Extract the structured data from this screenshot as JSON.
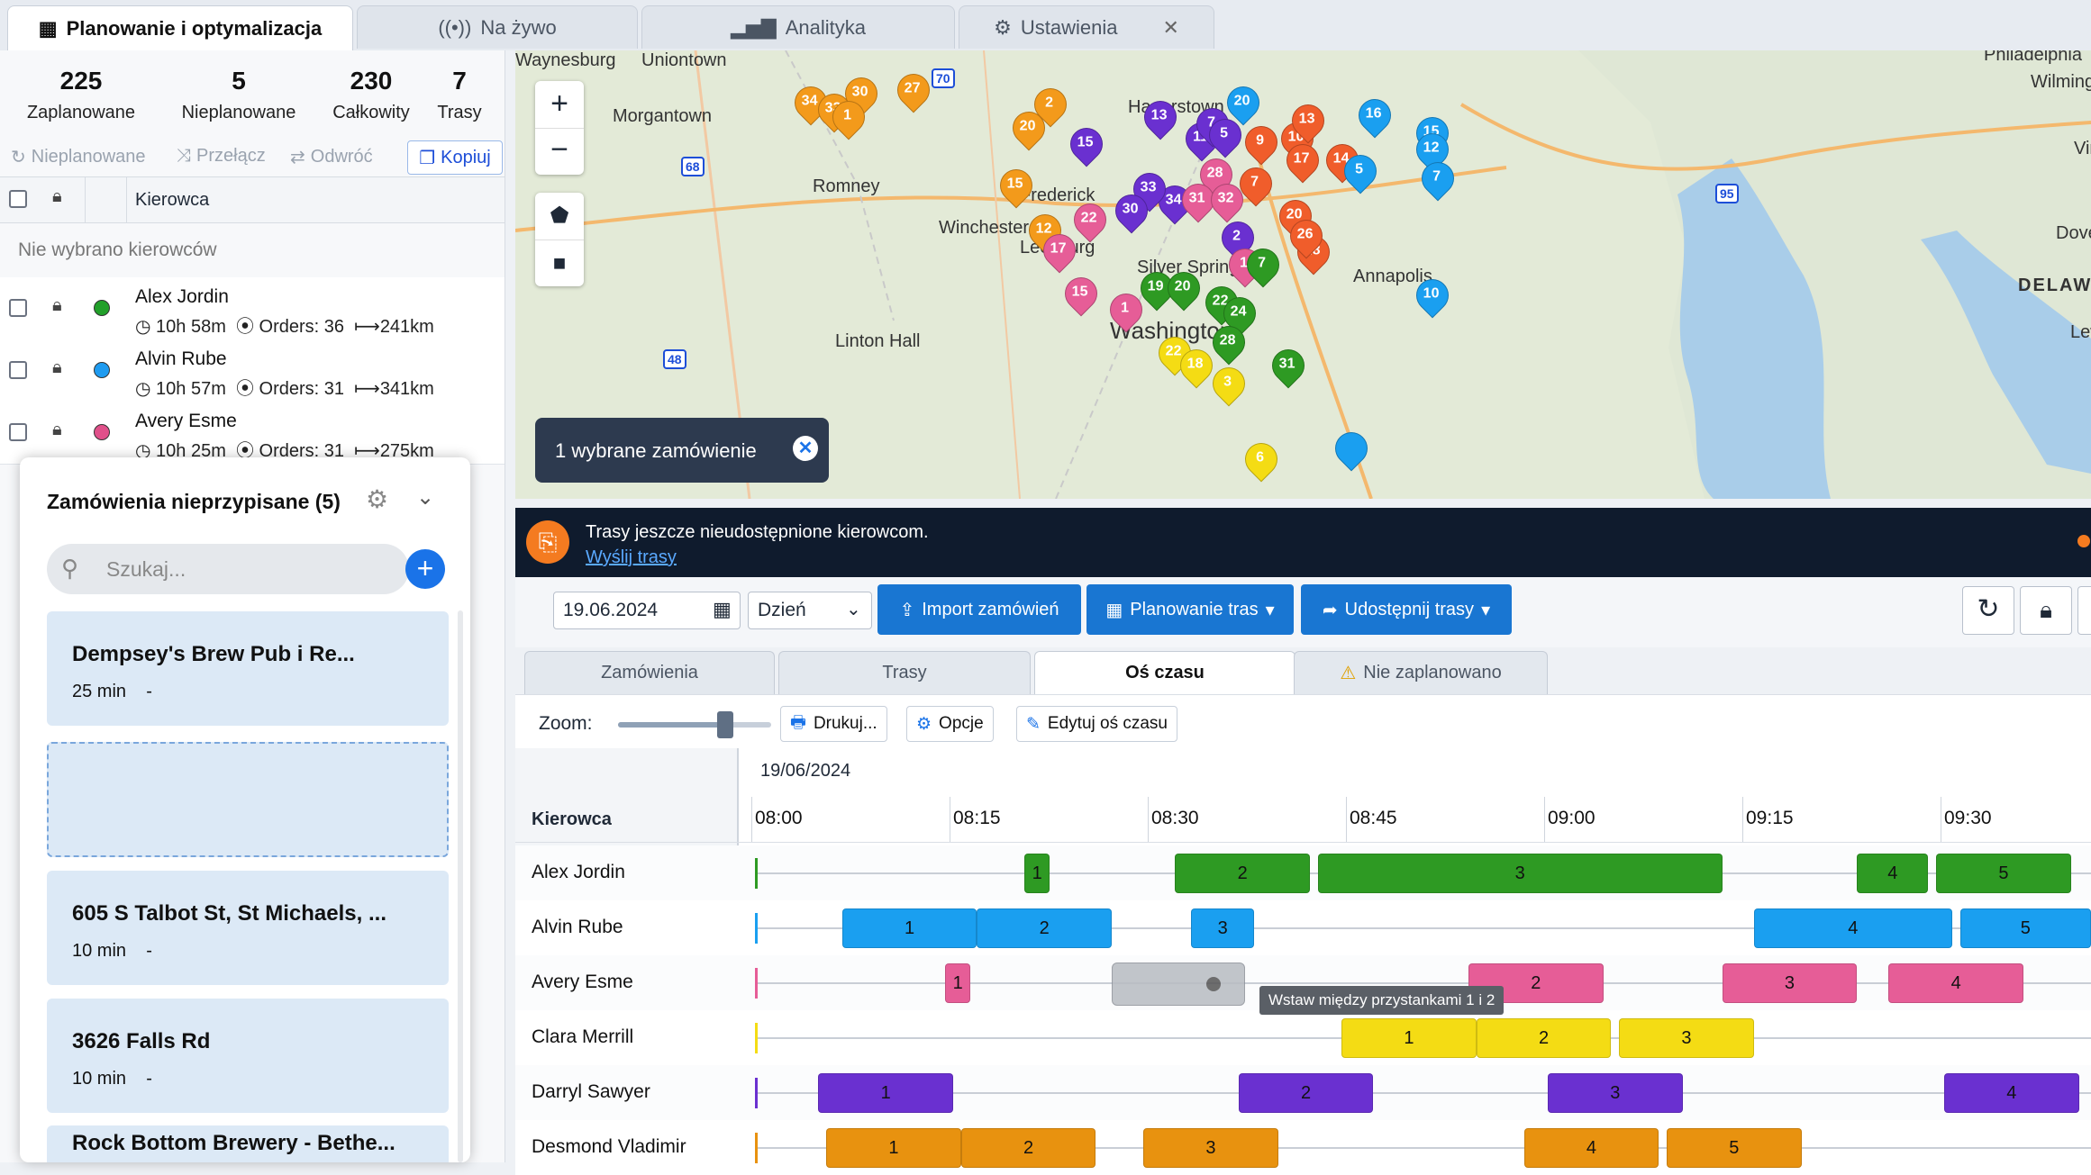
{
  "tabs": [
    {
      "label": "Planowanie i optymalizacja",
      "icon": "calendar-icon"
    },
    {
      "label": "Na żywo",
      "icon": "broadcast-icon"
    },
    {
      "label": "Analityka",
      "icon": "bar-chart-icon"
    },
    {
      "label": "Ustawienia",
      "icon": "gear-icon"
    }
  ],
  "stats": [
    {
      "value": "225",
      "label": "Zaplanowane"
    },
    {
      "value": "5",
      "label": "Nieplanowane"
    },
    {
      "value": "230",
      "label": "Całkowity"
    },
    {
      "value": "7",
      "label": "Trasy"
    }
  ],
  "tools": {
    "unplanned": "Nieplanowane",
    "switch": "Przełącz",
    "reverse": "Odwróć",
    "copy": "Kopiuj"
  },
  "driver_header": "Kierowca",
  "no_drivers": "Nie wybrano kierowców",
  "drivers": [
    {
      "name": "Alex Jordin",
      "time": "10h 58m",
      "orders": "Orders: 36",
      "dist": "241km",
      "color": "#22a02a"
    },
    {
      "name": "Alvin Rube",
      "time": "10h 57m",
      "orders": "Orders: 31",
      "dist": "341km",
      "color": "#1e9bf0"
    },
    {
      "name": "Avery Esme",
      "time": "10h 25m",
      "orders": "Orders: 31",
      "dist": "275km",
      "color": "#e0508a"
    }
  ],
  "unassigned": {
    "title": "Zamówienia nieprzypisane (5)",
    "search_placeholder": "Szukaj...",
    "orders": [
      {
        "title": "Dempsey's Brew Pub i Re...",
        "duration": "25 min",
        "extra": "-"
      },
      {
        "title": "605 S Talbot St, St Michaels, ...",
        "duration": "10 min",
        "extra": "-"
      },
      {
        "title": "3626 Falls Rd",
        "duration": "10 min",
        "extra": "-"
      },
      {
        "title": "Rock Bottom Brewery - Bethe...",
        "duration": "",
        "extra": ""
      }
    ]
  },
  "map": {
    "labels": [
      "Uniontown",
      "Waynesburg",
      "Morgantown",
      "Romney",
      "Winchester",
      "Leesburg",
      "Hagerstown",
      "Washington",
      "Linton Hall",
      "Annapolis",
      "Silver Spring",
      "Philadelphia",
      "Wilmington",
      "Vineland",
      "Dover",
      "DELAWARE",
      "Lewes",
      "Frederick"
    ],
    "highways": [
      "70",
      "68",
      "48",
      "95"
    ],
    "selected_chip": "1 wybrane zamówienie"
  },
  "banner": {
    "text": "Trasy jeszcze nieudostępnione kierowcom.",
    "link": "Wyślij trasy"
  },
  "toolbar": {
    "date": "19.06.2024",
    "period": "Dzień",
    "import": "Import zamówień",
    "plan": "Planowanie tras",
    "share": "Udostępnij trasy"
  },
  "view_tabs": [
    "Zamówienia",
    "Trasy",
    "Oś czasu",
    "Nie zaplanowano"
  ],
  "zoom": {
    "label": "Zoom:",
    "print": "Drukuj...",
    "options": "Opcje",
    "edit": "Edytuj oś czasu",
    "level": 0.7
  },
  "timeline": {
    "date": "19/06/2024",
    "driver_col": "Kierowca",
    "ticks": [
      "08:00",
      "08:15",
      "08:30",
      "08:45",
      "09:00",
      "09:15",
      "09:30"
    ],
    "tooltip": "Wstaw między przystankami 1 i 2",
    "rows": [
      {
        "name": "Alex Jordin",
        "color": "#2e9a23",
        "stops": [
          {
            "n": "1",
            "s": 8.34,
            "e": 8.37
          },
          {
            "n": "2",
            "s": 8.53,
            "e": 8.7
          },
          {
            "n": "3",
            "s": 8.71,
            "e": 9.22
          },
          {
            "n": "4",
            "s": 9.39,
            "e": 9.48
          },
          {
            "n": "5",
            "s": 9.49,
            "e": 9.66
          }
        ]
      },
      {
        "name": "Alvin Rube",
        "color": "#1a9ff0",
        "stops": [
          {
            "n": "1",
            "s": 8.11,
            "e": 8.28
          },
          {
            "n": "2",
            "s": 8.28,
            "e": 8.45
          },
          {
            "n": "3",
            "s": 8.55,
            "e": 8.63
          },
          {
            "n": "4",
            "s": 9.26,
            "e": 9.51
          },
          {
            "n": "5",
            "s": 9.52,
            "e": 9.69
          }
        ]
      },
      {
        "name": "Avery Esme",
        "color": "#e65d97",
        "stops": [
          {
            "n": "1",
            "s": 8.24,
            "e": 8.27
          },
          {
            "n": "2",
            "s": 8.9,
            "e": 9.07
          },
          {
            "n": "3",
            "s": 9.22,
            "e": 9.39
          },
          {
            "n": "4",
            "s": 9.43,
            "e": 9.6
          }
        ]
      },
      {
        "name": "Clara Merrill",
        "color": "#f4dc14",
        "stops": [
          {
            "n": "1",
            "s": 8.74,
            "e": 8.91
          },
          {
            "n": "2",
            "s": 8.91,
            "e": 9.08
          },
          {
            "n": "3",
            "s": 9.09,
            "e": 9.26
          }
        ]
      },
      {
        "name": "Darryl Sawyer",
        "color": "#6a30d0",
        "stops": [
          {
            "n": "1",
            "s": 8.08,
            "e": 8.25
          },
          {
            "n": "2",
            "s": 8.61,
            "e": 8.78
          },
          {
            "n": "3",
            "s": 9.0,
            "e": 9.17
          },
          {
            "n": "4",
            "s": 9.5,
            "e": 9.67
          }
        ]
      },
      {
        "name": "Desmond Vladimir",
        "color": "#e8920f",
        "stops": [
          {
            "n": "1",
            "s": 8.09,
            "e": 8.26
          },
          {
            "n": "2",
            "s": 8.26,
            "e": 8.43
          },
          {
            "n": "3",
            "s": 8.49,
            "e": 8.66
          },
          {
            "n": "4",
            "s": 8.97,
            "e": 9.14
          },
          {
            "n": "5",
            "s": 9.15,
            "e": 9.32
          }
        ]
      }
    ]
  }
}
